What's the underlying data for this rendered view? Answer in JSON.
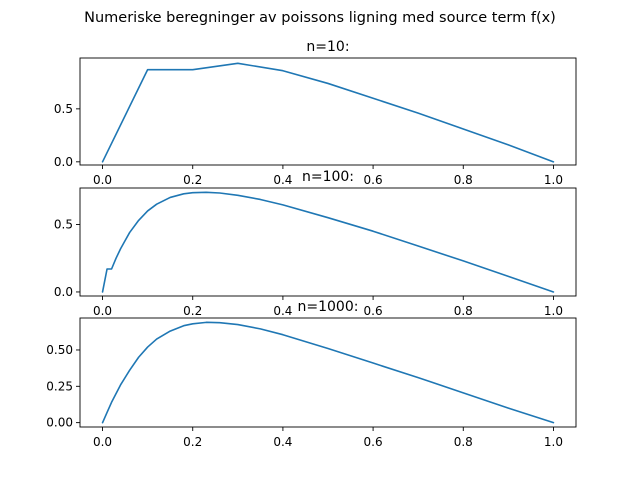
{
  "figure": {
    "suptitle": "Numeriske beregninger av poissons ligning med source term f(x)",
    "line_color": "#1f77b4"
  },
  "chart_data": [
    {
      "type": "line",
      "title": "n=10:",
      "xlabel": "",
      "ylabel": "",
      "xlim": [
        -0.05,
        1.05
      ],
      "ylim": [
        -0.03,
        0.98
      ],
      "xticks": [
        0.0,
        0.2,
        0.4,
        0.6,
        0.8,
        1.0
      ],
      "xtick_labels": [
        "0.0",
        "0.2",
        "0.4",
        "0.6",
        "0.8",
        "1.0"
      ],
      "yticks": [
        0.0,
        0.5
      ],
      "ytick_labels": [
        "0.0",
        "0.5"
      ],
      "grid": false,
      "series": [
        {
          "x": [
            0.0,
            0.1,
            0.2,
            0.3,
            0.4,
            0.5,
            0.6,
            0.7,
            0.8,
            0.9,
            1.0
          ],
          "values": [
            0.0,
            0.87,
            0.87,
            0.93,
            0.86,
            0.74,
            0.6,
            0.46,
            0.31,
            0.16,
            0.0
          ]
        }
      ]
    },
    {
      "type": "line",
      "title": "n=100:",
      "xlabel": "",
      "ylabel": "",
      "xlim": [
        -0.05,
        1.05
      ],
      "ylim": [
        -0.03,
        0.77
      ],
      "xticks": [
        0.0,
        0.2,
        0.4,
        0.6,
        0.8,
        1.0
      ],
      "xtick_labels": [
        "0.0",
        "0.2",
        "0.4",
        "0.6",
        "0.8",
        "1.0"
      ],
      "yticks": [
        0.0,
        0.5
      ],
      "ytick_labels": [
        "0.0",
        "0.5"
      ],
      "grid": false,
      "series": [
        {
          "x": [
            0.0,
            0.01,
            0.02,
            0.03,
            0.04,
            0.05,
            0.06,
            0.08,
            0.1,
            0.12,
            0.15,
            0.18,
            0.2,
            0.23,
            0.26,
            0.3,
            0.35,
            0.4,
            0.5,
            0.6,
            0.7,
            0.8,
            0.9,
            1.0
          ],
          "values": [
            0.0,
            0.17,
            0.17,
            0.25,
            0.32,
            0.38,
            0.44,
            0.53,
            0.6,
            0.65,
            0.7,
            0.727,
            0.735,
            0.738,
            0.733,
            0.716,
            0.685,
            0.645,
            0.55,
            0.45,
            0.34,
            0.23,
            0.115,
            0.0
          ]
        }
      ]
    },
    {
      "type": "line",
      "title": "n=1000:",
      "xlabel": "",
      "ylabel": "",
      "xlim": [
        -0.05,
        1.05
      ],
      "ylim": [
        -0.03,
        0.72
      ],
      "xticks": [
        0.0,
        0.2,
        0.4,
        0.6,
        0.8,
        1.0
      ],
      "xtick_labels": [
        "0.0",
        "0.2",
        "0.4",
        "0.6",
        "0.8",
        "1.0"
      ],
      "yticks": [
        0.0,
        0.25,
        0.5
      ],
      "ytick_labels": [
        "0.00",
        "0.25",
        "0.50"
      ],
      "grid": false,
      "series": [
        {
          "x": [
            0.0,
            0.01,
            0.02,
            0.04,
            0.06,
            0.08,
            0.1,
            0.12,
            0.15,
            0.18,
            0.2,
            0.23,
            0.26,
            0.3,
            0.35,
            0.4,
            0.5,
            0.6,
            0.7,
            0.8,
            0.9,
            1.0
          ],
          "values": [
            0.0,
            0.07,
            0.14,
            0.26,
            0.36,
            0.45,
            0.52,
            0.575,
            0.63,
            0.667,
            0.68,
            0.69,
            0.688,
            0.675,
            0.645,
            0.605,
            0.51,
            0.41,
            0.31,
            0.205,
            0.1,
            0.0
          ]
        }
      ]
    }
  ]
}
